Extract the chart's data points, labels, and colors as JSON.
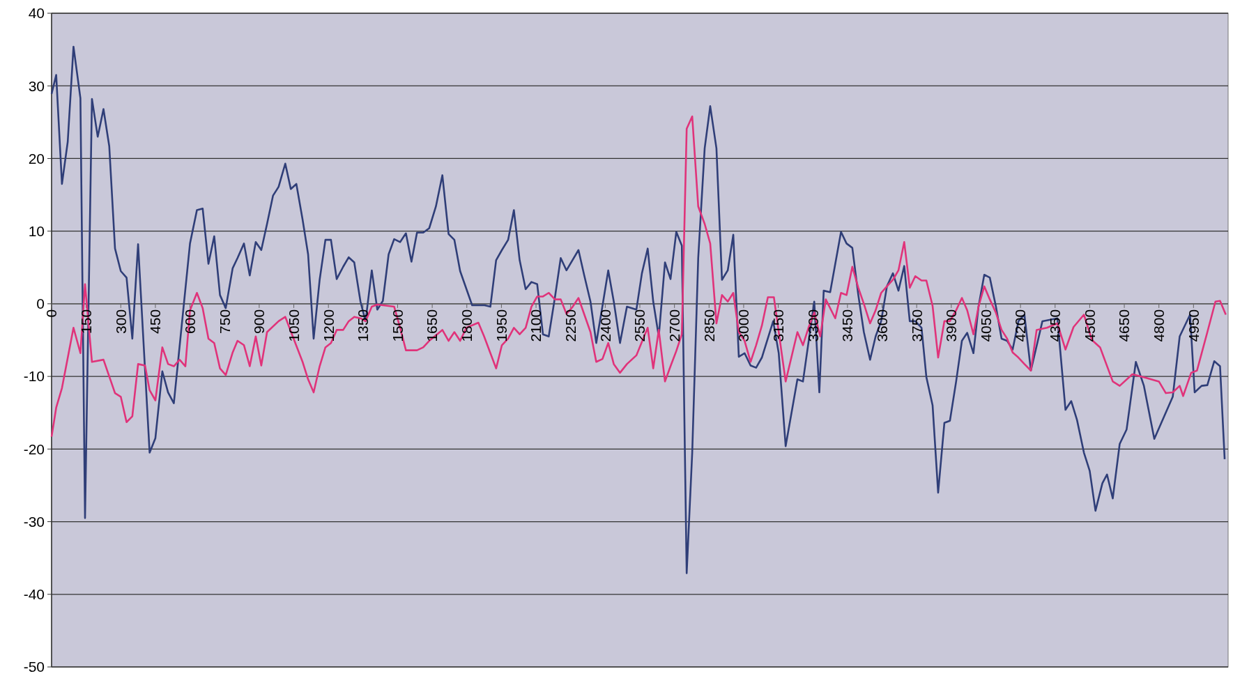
{
  "chart_data": {
    "type": "line",
    "xlim": [
      0,
      5100
    ],
    "ylim": [
      -50,
      40
    ],
    "yticks": [
      -50,
      -40,
      -30,
      -20,
      -10,
      0,
      10,
      20,
      30,
      40
    ],
    "xticks": [
      0,
      150,
      300,
      450,
      600,
      750,
      900,
      1050,
      1200,
      1350,
      1500,
      1650,
      1800,
      1950,
      2100,
      2250,
      2400,
      2550,
      2700,
      2850,
      3000,
      3150,
      3300,
      3450,
      3600,
      3750,
      3900,
      4050,
      4200,
      4350,
      4500,
      4650,
      4800,
      4950
    ],
    "grid": "y",
    "line_style": "solid",
    "marker": "none",
    "series": [
      {
        "color": "#2f3e78",
        "x": [
          0,
          20,
          45,
          70,
          95,
          125,
          145,
          175,
          200,
          225,
          250,
          275,
          300,
          325,
          350,
          375,
          425,
          450,
          480,
          505,
          530,
          600,
          630,
          655,
          680,
          705,
          730,
          755,
          785,
          806,
          834,
          859,
          885,
          909,
          934,
          960,
          984,
          1013,
          1037,
          1061,
          1088,
          1112,
          1136,
          1162,
          1187,
          1211,
          1236,
          1264,
          1288,
          1312,
          1339,
          1361,
          1388,
          1412,
          1436,
          1461,
          1485,
          1511,
          1536,
          1560,
          1584,
          1611,
          1637,
          1666,
          1694,
          1721,
          1746,
          1771,
          1823,
          1877,
          1902,
          1927,
          1952,
          1979,
          2004,
          2029,
          2055,
          2080,
          2105,
          2130,
          2155,
          2182,
          2207,
          2232,
          2284,
          2309,
          2336,
          2361,
          2388,
          2413,
          2437,
          2464,
          2494,
          2535,
          2559,
          2584,
          2608,
          2632,
          2659,
          2683,
          2708,
          2732,
          2753,
          2777,
          2803,
          2831,
          2855,
          2882,
          2906,
          2931,
          2955,
          2979,
          3004,
          3030,
          3054,
          3079,
          3128,
          3152,
          3182,
          3233,
          3257,
          3306,
          3328,
          3347,
          3375,
          3422,
          3446,
          3471,
          3497,
          3521,
          3548,
          3572,
          3596,
          3621,
          3647,
          3671,
          3696,
          3720,
          3744,
          3771,
          3792,
          3819,
          3843,
          3870,
          3894,
          3921,
          3946,
          3969,
          3996,
          4018,
          4043,
          4067,
          4093,
          4118,
          4142,
          4166,
          4191,
          4217,
          4245,
          4295,
          4360,
          4395,
          4420,
          4445,
          4475,
          4500,
          4525,
          4555,
          4575,
          4600,
          4630,
          4660,
          4700,
          4735,
          4780,
          4860,
          4890,
          4935,
          4955,
          4985,
          5010,
          5040,
          5065,
          5085
        ],
        "values": [
          28.9,
          31.5,
          16.5,
          22.3,
          35.4,
          28.3,
          -29.5,
          28.2,
          23,
          26.8,
          21.7,
          7.6,
          4.5,
          3.6,
          -4.8,
          8.2,
          -20.5,
          -18.5,
          -9.3,
          -12.2,
          -13.7,
          8.3,
          12.9,
          13.1,
          5.5,
          9.3,
          1.2,
          -0.6,
          4.9,
          6.3,
          8.3,
          3.9,
          8.5,
          7.4,
          11,
          14.9,
          16.1,
          19.3,
          15.8,
          16.5,
          11.6,
          6.8,
          -4.8,
          3.3,
          8.8,
          8.8,
          3.4,
          5.1,
          6.4,
          5.7,
          0.3,
          -2.4,
          4.6,
          -0.8,
          0.4,
          6.8,
          8.9,
          8.5,
          9.7,
          5.8,
          9.8,
          9.8,
          10.4,
          13.4,
          17.7,
          9.6,
          8.8,
          4.5,
          -0.2,
          -0.2,
          -0.4,
          6,
          7.4,
          8.8,
          12.9,
          6,
          2,
          3,
          2.7,
          -4.2,
          -4.5,
          0.9,
          6.3,
          4.6,
          7.4,
          3.9,
          0.3,
          -5.4,
          -0.3,
          4.6,
          0.3,
          -5.4,
          -0.4,
          -0.8,
          4.2,
          7.6,
          0.3,
          -4.5,
          5.7,
          3.4,
          9.9,
          8,
          -37.1,
          -20.5,
          6.3,
          21.4,
          27.2,
          21.4,
          3.3,
          4.6,
          9.5,
          -7.3,
          -6.8,
          -8.5,
          -8.8,
          -7.4,
          -2.4,
          -6.8,
          -19.6,
          -10.4,
          -10.7,
          0.3,
          -12.2,
          1.8,
          1.6,
          9.9,
          8.3,
          7.7,
          1.2,
          -3.9,
          -7.7,
          -4.5,
          -2.4,
          2.4,
          4.2,
          1.8,
          5.2,
          -2.4,
          -2.4,
          -3.3,
          -10.1,
          -14,
          -26,
          -16.4,
          -16.1,
          -10.7,
          -5.1,
          -4,
          -6.8,
          -0.4,
          4,
          3.6,
          -0.3,
          -4.8,
          -5.1,
          -6.3,
          -2.4,
          -1.5,
          -9.2,
          -2.4,
          -2,
          -14.6,
          -13.4,
          -16,
          -20.5,
          -23,
          -28.5,
          -24.7,
          -23.5,
          -26.8,
          -19.3,
          -17.3,
          -8,
          -11.3,
          -18.6,
          -12.8,
          -4.5,
          -1.5,
          -12.2,
          -11.3,
          -11.2,
          -7.9,
          -8.6,
          -21.4
        ]
      },
      {
        "color": "#e0337a",
        "x": [
          0,
          20,
          45,
          95,
          125,
          145,
          175,
          225,
          275,
          300,
          325,
          350,
          375,
          405,
          425,
          450,
          480,
          505,
          530,
          555,
          580,
          600,
          630,
          655,
          680,
          705,
          730,
          755,
          785,
          806,
          834,
          859,
          885,
          909,
          934,
          984,
          1013,
          1037,
          1088,
          1112,
          1136,
          1162,
          1187,
          1211,
          1236,
          1264,
          1288,
          1312,
          1339,
          1361,
          1388,
          1412,
          1461,
          1485,
          1511,
          1536,
          1584,
          1611,
          1637,
          1694,
          1721,
          1746,
          1771,
          1798,
          1850,
          1875,
          1927,
          1952,
          1979,
          2004,
          2029,
          2055,
          2080,
          2105,
          2130,
          2155,
          2182,
          2207,
          2232,
          2259,
          2284,
          2336,
          2361,
          2388,
          2413,
          2437,
          2464,
          2494,
          2535,
          2584,
          2608,
          2632,
          2659,
          2683,
          2708,
          2732,
          2753,
          2777,
          2803,
          2831,
          2855,
          2882,
          2906,
          2931,
          2955,
          2979,
          3004,
          3030,
          3054,
          3079,
          3105,
          3131,
          3182,
          3233,
          3257,
          3281,
          3306,
          3332,
          3356,
          3397,
          3422,
          3446,
          3471,
          3497,
          3521,
          3548,
          3572,
          3596,
          3621,
          3647,
          3671,
          3696,
          3720,
          3744,
          3771,
          3792,
          3819,
          3843,
          3870,
          3894,
          3921,
          3946,
          3969,
          3996,
          4018,
          4043,
          4067,
          4093,
          4118,
          4142,
          4166,
          4191,
          4217,
          4245,
          4270,
          4315,
          4360,
          4395,
          4430,
          4475,
          4510,
          4545,
          4600,
          4630,
          4685,
          4745,
          4800,
          4830,
          4860,
          4890,
          4905,
          4940,
          4965,
          5010,
          5045,
          5065,
          5090
        ],
        "values": [
          -18.3,
          -14.3,
          -11.6,
          -3.3,
          -6.8,
          2.7,
          -8,
          -7.7,
          -12.3,
          -12.8,
          -16.3,
          -15.5,
          -8.3,
          -8.5,
          -11.9,
          -13.3,
          -6,
          -8.3,
          -8.6,
          -7.7,
          -8.6,
          -0.9,
          1.5,
          -0.6,
          -4.8,
          -5.4,
          -8.9,
          -9.8,
          -6.7,
          -5.1,
          -5.7,
          -8.6,
          -4.5,
          -8.5,
          -3.9,
          -2.4,
          -1.8,
          -3.8,
          -8,
          -10.4,
          -12.2,
          -8.6,
          -6,
          -5.4,
          -3.6,
          -3.6,
          -2.4,
          -1.8,
          -2,
          -2.4,
          -0.4,
          -0.1,
          -0.3,
          -0.4,
          -3.3,
          -6.4,
          -6.4,
          -6,
          -5.1,
          -3.6,
          -5.1,
          -3.9,
          -5.1,
          -3.3,
          -2.6,
          -4.5,
          -8.9,
          -5.7,
          -4.8,
          -3.3,
          -4.2,
          -3.3,
          -0.4,
          1,
          1,
          1.5,
          0.6,
          0.6,
          -1.4,
          -0.4,
          0.8,
          -3.9,
          -8,
          -7.6,
          -5.4,
          -8.3,
          -9.5,
          -8.3,
          -7.1,
          -3.3,
          -8.9,
          -3.6,
          -10.7,
          -8.6,
          -6.5,
          -4.2,
          24.1,
          25.8,
          13.4,
          11,
          8.3,
          -2.7,
          1.2,
          0.3,
          1.5,
          -3.9,
          -5.1,
          -8,
          -5.7,
          -3,
          0.9,
          0.9,
          -10.7,
          -3.9,
          -5.7,
          -3.3,
          -1.2,
          -4.5,
          0.6,
          -2,
          1.5,
          1.2,
          5.1,
          2.2,
          0,
          -2.7,
          -0.9,
          1.5,
          2.4,
          3.3,
          4.6,
          8.5,
          2.2,
          3.8,
          3.2,
          3.2,
          -0.3,
          -7.4,
          -2.4,
          -2.4,
          -0.9,
          0.8,
          -0.9,
          -4.2,
          -0.4,
          2.4,
          0.6,
          -1.2,
          -3.6,
          -4.8,
          -6.7,
          -7.4,
          -8.3,
          -9.2,
          -3.6,
          -3.3,
          -2.7,
          -6.3,
          -3.2,
          -1.5,
          -5,
          -6,
          -10.7,
          -11.3,
          -9.7,
          -10.2,
          -10.7,
          -12.3,
          -12.2,
          -11.3,
          -12.7,
          -9.5,
          -9.2,
          -3.9,
          0.3,
          0.4,
          -1.5
        ]
      }
    ]
  }
}
